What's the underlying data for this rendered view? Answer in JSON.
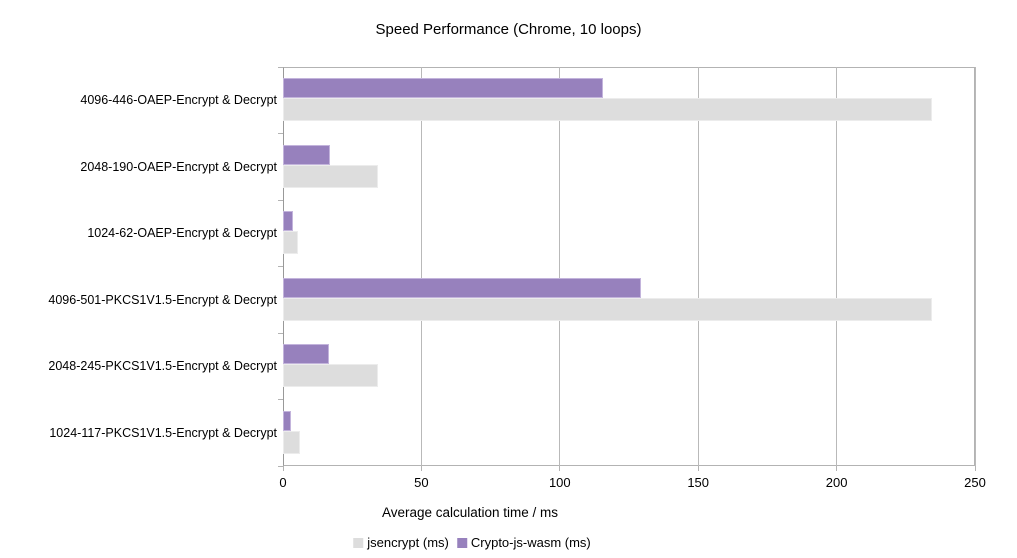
{
  "title": "Speed Performance (Chrome, 10 loops)",
  "chart_data": {
    "type": "bar",
    "orientation": "horizontal",
    "title": "Speed Performance (Chrome, 10 loops)",
    "categories": [
      "4096-446-OAEP-Encrypt & Decrypt",
      "2048-190-OAEP-Encrypt & Decrypt",
      "1024-62-OAEP-Encrypt & Decrypt",
      "4096-501-PKCS1V1.5-Encrypt & Decrypt",
      "2048-245-PKCS1V1.5-Encrypt & Decrypt",
      "1024-117-PKCS1V1.5-Encrypt & Decrypt"
    ],
    "series": [
      {
        "name": "jsencrypt (ms)",
        "color": "#dddddd",
        "border_color": "#ececec",
        "values": [
          234.5,
          34.5,
          5.5,
          234.5,
          34.5,
          6
        ]
      },
      {
        "name": "Crypto-js-wasm (ms)",
        "color": "#9781bd",
        "border_color": "#c3b4dc",
        "values": [
          115.5,
          17,
          3.7,
          129.5,
          16.5,
          3
        ]
      }
    ],
    "xlabel": "Average calculation time / ms",
    "xlim": [
      0,
      250
    ],
    "xticks": [
      0,
      50,
      100,
      150,
      200,
      250
    ],
    "grid": true,
    "legend_position": "bottom"
  },
  "colors": {
    "background": "#ffffff",
    "gridline": "#b9b9b9",
    "plot_border": "#b3b3b3",
    "y_axis": "#999999",
    "text": "#000000"
  }
}
